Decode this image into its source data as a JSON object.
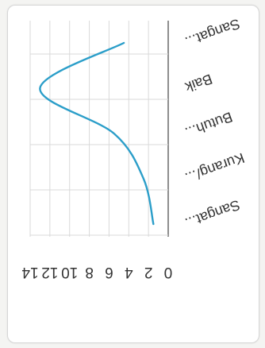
{
  "chart_data": {
    "type": "line",
    "orientation": "rotated-180",
    "categories": [
      "Sangat...",
      "Kurang/...",
      "Butuh...",
      "Baik",
      "Sangat..."
    ],
    "series": [
      {
        "values": [
          1.5,
          2.5,
          5.5,
          13,
          4.5
        ],
        "color": "#2b9ec9"
      }
    ],
    "y_ticks": [
      "0",
      "2",
      "4",
      "6",
      "8",
      "10",
      "12",
      "14"
    ],
    "ylim": [
      0,
      14
    ],
    "grid": true,
    "smooth": true
  }
}
